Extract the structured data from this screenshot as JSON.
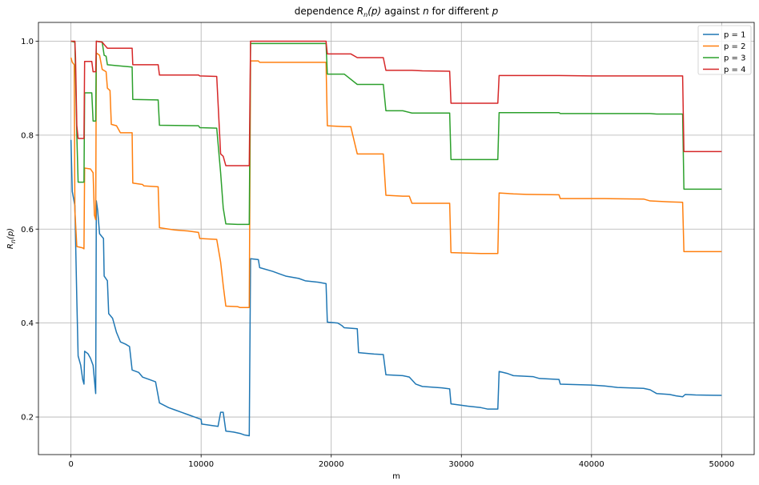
{
  "chart_data": {
    "type": "line",
    "title": "dependence R_n(p) against n for different p",
    "title_parts": [
      "dependence ",
      "R",
      "n",
      "(p)",
      " against ",
      "n",
      " for different ",
      "p"
    ],
    "xlabel": "m",
    "ylabel_parts": [
      "R",
      "n",
      "(p)"
    ],
    "xlim": [
      -2500,
      52500
    ],
    "ylim": [
      0.12,
      1.04
    ],
    "xticks": [
      0,
      10000,
      20000,
      30000,
      40000,
      50000
    ],
    "xtick_labels": [
      "0",
      "10000",
      "20000",
      "30000",
      "40000",
      "50000"
    ],
    "yticks": [
      0.2,
      0.4,
      0.6,
      0.8,
      1.0
    ],
    "ytick_labels": [
      "0.2",
      "0.4",
      "0.6",
      "0.8",
      "1.0"
    ],
    "grid": true,
    "legend_position": "top-right",
    "series": [
      {
        "name": "p = 1",
        "color": "#1f77b4",
        "points": [
          [
            0,
            0.79
          ],
          [
            100,
            0.68
          ],
          [
            300,
            0.65
          ],
          [
            450,
            0.45
          ],
          [
            550,
            0.33
          ],
          [
            750,
            0.31
          ],
          [
            900,
            0.28
          ],
          [
            1000,
            0.27
          ],
          [
            1050,
            0.34
          ],
          [
            1300,
            0.335
          ],
          [
            1500,
            0.325
          ],
          [
            1700,
            0.31
          ],
          [
            1800,
            0.28
          ],
          [
            1900,
            0.25
          ],
          [
            1950,
            0.66
          ],
          [
            2050,
            0.64
          ],
          [
            2200,
            0.59
          ],
          [
            2500,
            0.58
          ],
          [
            2550,
            0.5
          ],
          [
            2800,
            0.49
          ],
          [
            2900,
            0.42
          ],
          [
            3200,
            0.41
          ],
          [
            3500,
            0.38
          ],
          [
            3800,
            0.36
          ],
          [
            4200,
            0.355
          ],
          [
            4500,
            0.35
          ],
          [
            4700,
            0.3
          ],
          [
            5200,
            0.295
          ],
          [
            5500,
            0.285
          ],
          [
            6000,
            0.28
          ],
          [
            6500,
            0.275
          ],
          [
            6800,
            0.23
          ],
          [
            7500,
            0.22
          ],
          [
            8000,
            0.215
          ],
          [
            8500,
            0.21
          ],
          [
            9000,
            0.205
          ],
          [
            9500,
            0.2
          ],
          [
            10000,
            0.195
          ],
          [
            10050,
            0.185
          ],
          [
            10800,
            0.182
          ],
          [
            11300,
            0.18
          ],
          [
            11500,
            0.21
          ],
          [
            11700,
            0.21
          ],
          [
            11900,
            0.17
          ],
          [
            12500,
            0.168
          ],
          [
            13000,
            0.165
          ],
          [
            13300,
            0.162
          ],
          [
            13700,
            0.16
          ],
          [
            13800,
            0.537
          ],
          [
            14400,
            0.535
          ],
          [
            14500,
            0.518
          ],
          [
            15500,
            0.51
          ],
          [
            16000,
            0.505
          ],
          [
            16500,
            0.5
          ],
          [
            17500,
            0.495
          ],
          [
            18000,
            0.49
          ],
          [
            19000,
            0.487
          ],
          [
            19600,
            0.484
          ],
          [
            19700,
            0.402
          ],
          [
            20500,
            0.4
          ],
          [
            20800,
            0.395
          ],
          [
            21000,
            0.39
          ],
          [
            22000,
            0.388
          ],
          [
            22100,
            0.337
          ],
          [
            23300,
            0.334
          ],
          [
            24000,
            0.333
          ],
          [
            24200,
            0.29
          ],
          [
            25500,
            0.288
          ],
          [
            26000,
            0.285
          ],
          [
            26500,
            0.27
          ],
          [
            27000,
            0.265
          ],
          [
            28500,
            0.262
          ],
          [
            29100,
            0.26
          ],
          [
            29200,
            0.228
          ],
          [
            30000,
            0.225
          ],
          [
            30500,
            0.223
          ],
          [
            31500,
            0.22
          ],
          [
            32000,
            0.217
          ],
          [
            32800,
            0.217
          ],
          [
            32900,
            0.297
          ],
          [
            33500,
            0.293
          ],
          [
            34000,
            0.288
          ],
          [
            35500,
            0.286
          ],
          [
            36000,
            0.282
          ],
          [
            37500,
            0.28
          ],
          [
            37600,
            0.27
          ],
          [
            40000,
            0.268
          ],
          [
            41000,
            0.266
          ],
          [
            42000,
            0.263
          ],
          [
            44000,
            0.261
          ],
          [
            44500,
            0.258
          ],
          [
            45000,
            0.25
          ],
          [
            46000,
            0.248
          ],
          [
            46500,
            0.245
          ],
          [
            47000,
            0.243
          ],
          [
            47200,
            0.248
          ],
          [
            48000,
            0.247
          ],
          [
            50000,
            0.246
          ]
        ]
      },
      {
        "name": "p = 2",
        "color": "#ff7f0e",
        "points": [
          [
            0,
            0.965
          ],
          [
            100,
            0.955
          ],
          [
            250,
            0.95
          ],
          [
            300,
            0.64
          ],
          [
            450,
            0.563
          ],
          [
            900,
            0.56
          ],
          [
            1000,
            0.558
          ],
          [
            1050,
            0.73
          ],
          [
            1500,
            0.728
          ],
          [
            1700,
            0.72
          ],
          [
            1800,
            0.63
          ],
          [
            1900,
            0.62
          ],
          [
            1950,
            0.975
          ],
          [
            2200,
            0.97
          ],
          [
            2400,
            0.94
          ],
          [
            2700,
            0.935
          ],
          [
            2800,
            0.9
          ],
          [
            3000,
            0.895
          ],
          [
            3100,
            0.823
          ],
          [
            3500,
            0.82
          ],
          [
            3700,
            0.81
          ],
          [
            3800,
            0.805
          ],
          [
            4700,
            0.805
          ],
          [
            4750,
            0.698
          ],
          [
            5500,
            0.695
          ],
          [
            5600,
            0.692
          ],
          [
            6700,
            0.69
          ],
          [
            6800,
            0.603
          ],
          [
            7500,
            0.6
          ],
          [
            8000,
            0.598
          ],
          [
            9000,
            0.596
          ],
          [
            9800,
            0.593
          ],
          [
            9900,
            0.58
          ],
          [
            11200,
            0.578
          ],
          [
            11500,
            0.53
          ],
          [
            11700,
            0.48
          ],
          [
            11900,
            0.436
          ],
          [
            12800,
            0.435
          ],
          [
            13000,
            0.433
          ],
          [
            13700,
            0.433
          ],
          [
            13800,
            0.958
          ],
          [
            14400,
            0.958
          ],
          [
            14500,
            0.955
          ],
          [
            19600,
            0.955
          ],
          [
            19700,
            0.82
          ],
          [
            21000,
            0.818
          ],
          [
            21500,
            0.818
          ],
          [
            22000,
            0.76
          ],
          [
            24000,
            0.76
          ],
          [
            24200,
            0.672
          ],
          [
            25500,
            0.67
          ],
          [
            26000,
            0.67
          ],
          [
            26200,
            0.655
          ],
          [
            28000,
            0.655
          ],
          [
            29100,
            0.655
          ],
          [
            29200,
            0.55
          ],
          [
            31500,
            0.548
          ],
          [
            32800,
            0.548
          ],
          [
            32900,
            0.677
          ],
          [
            34000,
            0.675
          ],
          [
            35000,
            0.674
          ],
          [
            37500,
            0.673
          ],
          [
            37600,
            0.665
          ],
          [
            41000,
            0.665
          ],
          [
            44000,
            0.664
          ],
          [
            44500,
            0.66
          ],
          [
            46000,
            0.658
          ],
          [
            47000,
            0.657
          ],
          [
            47100,
            0.552
          ],
          [
            48000,
            0.552
          ],
          [
            50000,
            0.552
          ]
        ]
      },
      {
        "name": "p = 3",
        "color": "#2ca02c",
        "points": [
          [
            0,
            1.0
          ],
          [
            300,
            0.998
          ],
          [
            450,
            0.8
          ],
          [
            550,
            0.7
          ],
          [
            900,
            0.7
          ],
          [
            1000,
            0.7
          ],
          [
            1050,
            0.89
          ],
          [
            1500,
            0.89
          ],
          [
            1600,
            0.89
          ],
          [
            1700,
            0.83
          ],
          [
            1900,
            0.83
          ],
          [
            1950,
            1.0
          ],
          [
            2400,
            0.998
          ],
          [
            2550,
            0.97
          ],
          [
            2700,
            0.968
          ],
          [
            2800,
            0.95
          ],
          [
            3500,
            0.948
          ],
          [
            4700,
            0.945
          ],
          [
            4750,
            0.876
          ],
          [
            6700,
            0.875
          ],
          [
            6800,
            0.821
          ],
          [
            9800,
            0.82
          ],
          [
            9900,
            0.816
          ],
          [
            11200,
            0.815
          ],
          [
            11500,
            0.72
          ],
          [
            11700,
            0.645
          ],
          [
            11900,
            0.611
          ],
          [
            12800,
            0.61
          ],
          [
            13700,
            0.61
          ],
          [
            13800,
            0.995
          ],
          [
            19600,
            0.995
          ],
          [
            19700,
            0.93
          ],
          [
            21000,
            0.93
          ],
          [
            22000,
            0.908
          ],
          [
            24000,
            0.908
          ],
          [
            24200,
            0.852
          ],
          [
            25500,
            0.852
          ],
          [
            26200,
            0.847
          ],
          [
            29100,
            0.847
          ],
          [
            29200,
            0.748
          ],
          [
            32800,
            0.748
          ],
          [
            32900,
            0.848
          ],
          [
            37500,
            0.848
          ],
          [
            37600,
            0.846
          ],
          [
            42000,
            0.846
          ],
          [
            44500,
            0.846
          ],
          [
            45000,
            0.845
          ],
          [
            47000,
            0.845
          ],
          [
            47100,
            0.685
          ],
          [
            50000,
            0.685
          ]
        ]
      },
      {
        "name": "p = 4",
        "color": "#d62728",
        "points": [
          [
            0,
            1.0
          ],
          [
            300,
            1.0
          ],
          [
            350,
            0.965
          ],
          [
            450,
            0.82
          ],
          [
            550,
            0.793
          ],
          [
            1000,
            0.793
          ],
          [
            1050,
            0.957
          ],
          [
            1600,
            0.957
          ],
          [
            1700,
            0.935
          ],
          [
            1900,
            0.935
          ],
          [
            1950,
            1.0
          ],
          [
            2400,
            0.998
          ],
          [
            2550,
            0.993
          ],
          [
            2800,
            0.985
          ],
          [
            4700,
            0.985
          ],
          [
            4750,
            0.95
          ],
          [
            6700,
            0.95
          ],
          [
            6800,
            0.928
          ],
          [
            9800,
            0.928
          ],
          [
            9900,
            0.926
          ],
          [
            11200,
            0.925
          ],
          [
            11500,
            0.76
          ],
          [
            11700,
            0.755
          ],
          [
            11900,
            0.735
          ],
          [
            13700,
            0.735
          ],
          [
            13800,
            1.0
          ],
          [
            19600,
            1.0
          ],
          [
            19700,
            0.973
          ],
          [
            21500,
            0.973
          ],
          [
            22000,
            0.965
          ],
          [
            24000,
            0.965
          ],
          [
            24200,
            0.938
          ],
          [
            26200,
            0.938
          ],
          [
            27000,
            0.937
          ],
          [
            29100,
            0.936
          ],
          [
            29200,
            0.868
          ],
          [
            32800,
            0.868
          ],
          [
            32900,
            0.927
          ],
          [
            37500,
            0.927
          ],
          [
            40000,
            0.926
          ],
          [
            47000,
            0.926
          ],
          [
            47100,
            0.765
          ],
          [
            50000,
            0.765
          ]
        ]
      }
    ]
  }
}
